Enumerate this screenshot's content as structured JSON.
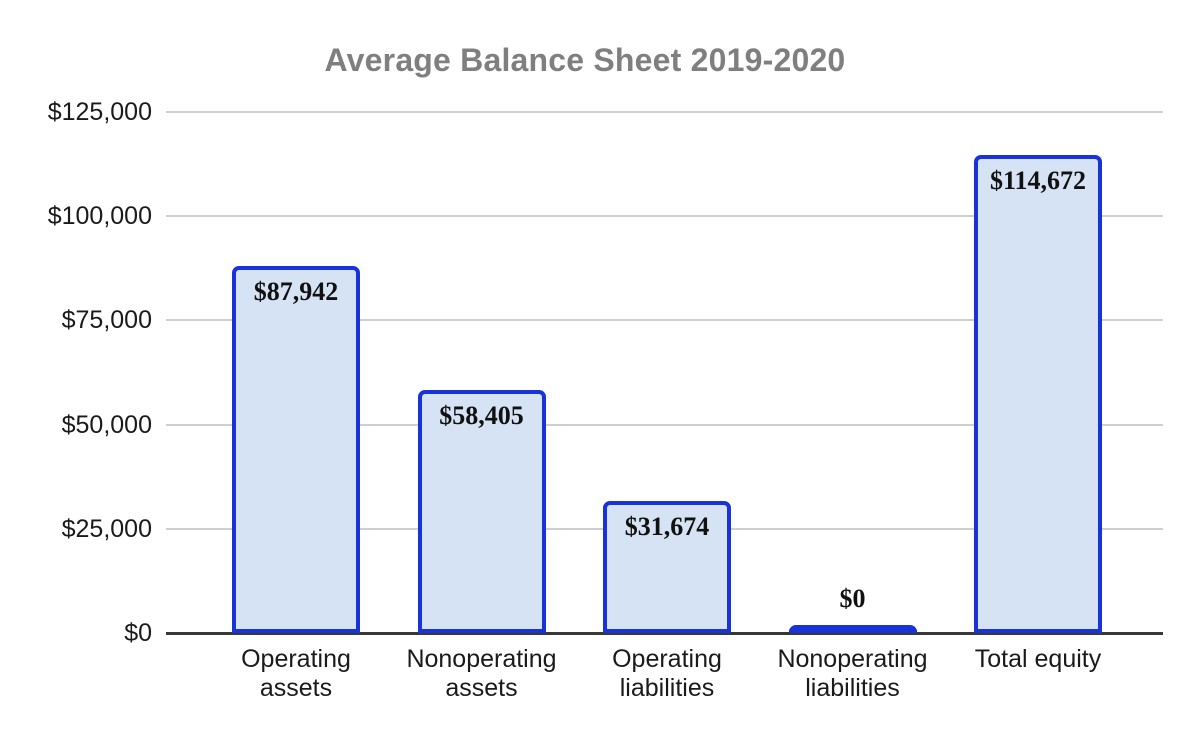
{
  "chart_data": {
    "type": "bar",
    "title": "Average Balance Sheet 2019-2020",
    "categories": [
      "Operating assets",
      "Nonoperating assets",
      "Operating liabilities",
      "Nonoperating liabilities",
      "Total equity"
    ],
    "values": [
      87942,
      58405,
      31674,
      0,
      114672
    ],
    "value_labels": [
      "$87,942",
      "$58,405",
      "$31,674",
      "$0",
      "$114,672"
    ],
    "xlabel": "",
    "ylabel": "",
    "ylim": [
      0,
      125000
    ],
    "ytick_values": [
      0,
      25000,
      50000,
      75000,
      100000,
      125000
    ],
    "ytick_labels": [
      "$0",
      "$25,000",
      "$50,000",
      "$75,000",
      "$100,000",
      "$125,000"
    ],
    "grid": true,
    "legend": false,
    "colors": {
      "bar_fill": "#d6e3f4",
      "bar_border": "#1733d9",
      "title_text": "#7f7f7f",
      "gridline": "#cfcfcf",
      "axis_line": "#383838",
      "label_text": "#111111",
      "background": "#ffffff"
    }
  }
}
